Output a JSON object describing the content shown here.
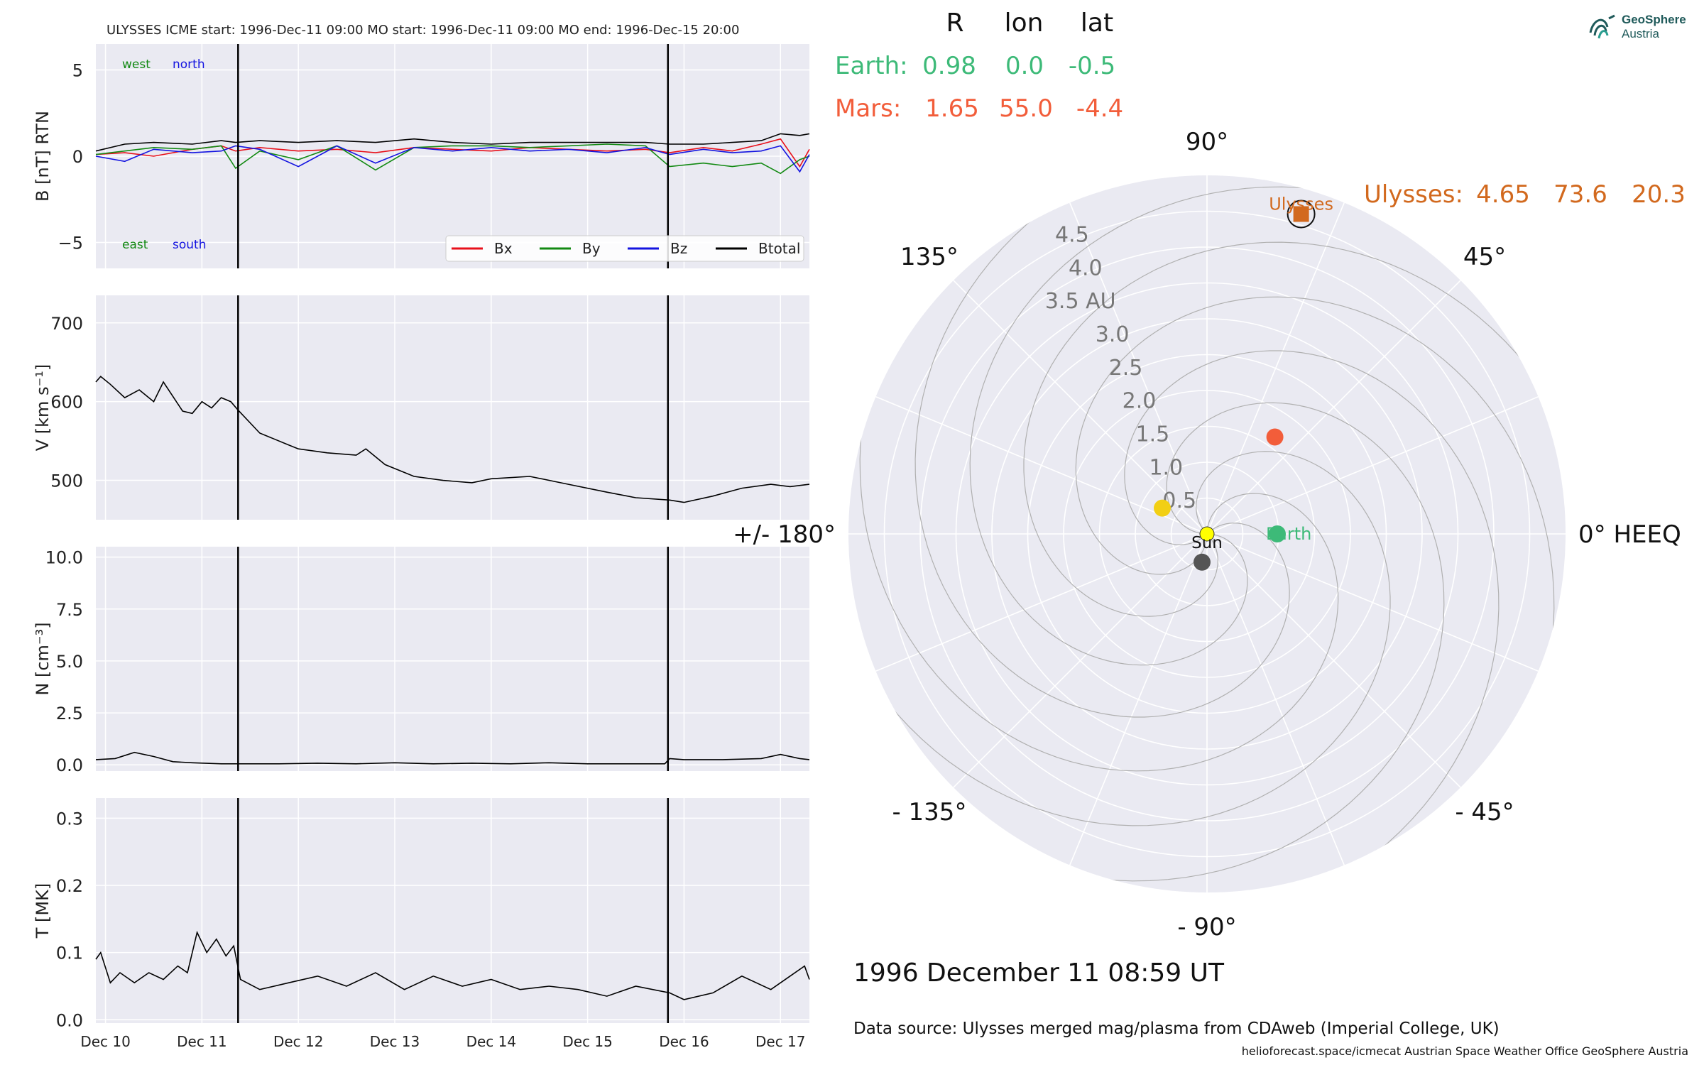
{
  "figure": {
    "top_title": "ULYSSES    ICME start: 1996-Dec-11 09:00   MO start: 1996-Dec-11 09:00   MO end: 1996-Dec-15 20:00",
    "date_text": "1996 December 11  08:59 UT",
    "source_text": "Data source: Ulysses merged mag/plasma from CDAweb (Imperial College, UK)",
    "footer_text": "helioforecast.space/icmecat   Austrian Space Weather Office   GeoSphere Austria",
    "logo": {
      "line1": "GeoSphere",
      "line2": "Austria",
      "icon": "geosphere-logo-icon"
    }
  },
  "colors": {
    "panel_bg": "#eaeaf2",
    "grid": "#ffffff",
    "bx": "#e8101a",
    "by": "#138a13",
    "bz": "#1414e0",
    "btotal": "#000000",
    "earth": "#3dba78",
    "mars": "#f25d3a",
    "ulysses": "#d2691e",
    "venus": "#f2cf14",
    "mercury": "#555555",
    "sun": "#ffff00"
  },
  "chart_data": [
    {
      "type": "line",
      "name": "magnetic-field-panel",
      "ylabel": "B [nT] RTN",
      "ylim": [
        -6.5,
        6.5
      ],
      "yticks": [
        5,
        0,
        -5
      ],
      "ytick_labels": [
        "5",
        "0",
        "−5"
      ],
      "annotations": {
        "top_left": "west",
        "top_right": "north",
        "bottom_left": "east",
        "bottom_right": "south"
      },
      "legend": [
        "Bx",
        "By",
        "Bz",
        "Btotal"
      ],
      "legend_placement": "lower-right",
      "series": [
        {
          "name": "Bx",
          "x": [
            9.9,
            10.2,
            10.5,
            10.9,
            11.2,
            11.35,
            11.6,
            12.0,
            12.4,
            12.8,
            13.2,
            13.6,
            14.0,
            14.4,
            14.8,
            15.2,
            15.6,
            15.85,
            16.2,
            16.5,
            16.8,
            17.0,
            17.2,
            17.3
          ],
          "y": [
            0.1,
            0.2,
            0.0,
            0.4,
            0.6,
            0.3,
            0.5,
            0.3,
            0.4,
            0.2,
            0.5,
            0.4,
            0.3,
            0.5,
            0.4,
            0.3,
            0.4,
            0.2,
            0.5,
            0.3,
            0.7,
            1.0,
            -0.6,
            0.4
          ]
        },
        {
          "name": "By",
          "x": [
            9.9,
            10.2,
            10.5,
            10.9,
            11.2,
            11.35,
            11.6,
            12.0,
            12.4,
            12.8,
            13.2,
            13.6,
            14.0,
            14.4,
            14.8,
            15.2,
            15.6,
            15.85,
            16.2,
            16.5,
            16.8,
            17.0,
            17.2,
            17.3
          ],
          "y": [
            0.1,
            0.3,
            0.5,
            0.4,
            0.6,
            -0.7,
            0.3,
            -0.2,
            0.6,
            -0.8,
            0.5,
            0.6,
            0.6,
            0.5,
            0.6,
            0.7,
            0.6,
            -0.6,
            -0.4,
            -0.6,
            -0.4,
            -1.0,
            -0.2,
            0.0
          ]
        },
        {
          "name": "Bz",
          "x": [
            9.9,
            10.2,
            10.5,
            10.9,
            11.2,
            11.35,
            11.6,
            12.0,
            12.4,
            12.8,
            13.2,
            13.6,
            14.0,
            14.4,
            14.8,
            15.2,
            15.6,
            15.85,
            16.2,
            16.5,
            16.8,
            17.0,
            17.2,
            17.3
          ],
          "y": [
            0.0,
            -0.3,
            0.4,
            0.2,
            0.3,
            0.6,
            0.4,
            -0.6,
            0.6,
            -0.4,
            0.5,
            0.3,
            0.5,
            0.3,
            0.4,
            0.2,
            0.5,
            0.1,
            0.4,
            0.2,
            0.3,
            0.6,
            -0.9,
            0.1
          ]
        },
        {
          "name": "Btotal",
          "x": [
            9.9,
            10.2,
            10.5,
            10.9,
            11.2,
            11.35,
            11.6,
            12.0,
            12.4,
            12.8,
            13.2,
            13.6,
            14.0,
            14.4,
            14.8,
            15.2,
            15.6,
            15.85,
            16.2,
            16.5,
            16.8,
            17.0,
            17.2,
            17.3
          ],
          "y": [
            0.3,
            0.7,
            0.8,
            0.7,
            0.9,
            0.8,
            0.9,
            0.8,
            0.9,
            0.8,
            1.0,
            0.8,
            0.7,
            0.8,
            0.8,
            0.8,
            0.8,
            0.7,
            0.7,
            0.8,
            0.9,
            1.3,
            1.2,
            1.3
          ]
        }
      ]
    },
    {
      "type": "line",
      "name": "speed-panel",
      "ylabel": "V [km s⁻¹]",
      "ylim": [
        450,
        735
      ],
      "yticks": [
        700,
        600,
        500
      ],
      "ytick_labels": [
        "700",
        "600",
        "500"
      ],
      "series": [
        {
          "name": "V",
          "x": [
            9.9,
            9.95,
            10.05,
            10.2,
            10.35,
            10.5,
            10.6,
            10.8,
            10.9,
            11.0,
            11.1,
            11.2,
            11.3,
            11.37,
            11.6,
            11.9,
            12.0,
            12.3,
            12.6,
            12.7,
            12.9,
            13.2,
            13.5,
            13.8,
            14.0,
            14.4,
            14.8,
            15.2,
            15.5,
            15.85,
            16.0,
            16.3,
            16.6,
            16.9,
            17.1,
            17.3
          ],
          "y": [
            625,
            632,
            622,
            605,
            615,
            600,
            625,
            588,
            585,
            600,
            592,
            605,
            600,
            590,
            560,
            545,
            540,
            535,
            532,
            540,
            520,
            505,
            500,
            497,
            502,
            505,
            495,
            485,
            478,
            475,
            472,
            480,
            490,
            495,
            492,
            495
          ]
        }
      ]
    },
    {
      "type": "line",
      "name": "density-panel",
      "ylabel": "N [cm⁻³]",
      "ylim": [
        -0.3,
        10.5
      ],
      "yticks": [
        10.0,
        7.5,
        5.0,
        2.5,
        0.0
      ],
      "ytick_labels": [
        "10.0",
        "7.5",
        "5.0",
        "2.5",
        "0.0"
      ],
      "series": [
        {
          "name": "N",
          "x": [
            9.9,
            10.1,
            10.3,
            10.5,
            10.7,
            10.9,
            11.2,
            11.37,
            11.8,
            12.2,
            12.6,
            13.0,
            13.4,
            13.8,
            14.2,
            14.6,
            15.0,
            15.4,
            15.8,
            15.85,
            16.0,
            16.4,
            16.8,
            17.0,
            17.2,
            17.3
          ],
          "y": [
            0.25,
            0.3,
            0.6,
            0.4,
            0.15,
            0.1,
            0.05,
            0.05,
            0.05,
            0.08,
            0.05,
            0.1,
            0.05,
            0.08,
            0.05,
            0.1,
            0.05,
            0.05,
            0.05,
            0.3,
            0.25,
            0.25,
            0.3,
            0.5,
            0.3,
            0.25
          ]
        }
      ]
    },
    {
      "type": "line",
      "name": "temperature-panel",
      "ylabel": "T [MK]",
      "ylim": [
        -0.005,
        0.33
      ],
      "yticks": [
        0.3,
        0.2,
        0.1,
        0.0
      ],
      "ytick_labels": [
        "0.3",
        "0.2",
        "0.1",
        "0.0"
      ],
      "xlim": [
        9.9,
        17.3
      ],
      "xticks": [
        10,
        11,
        12,
        13,
        14,
        15,
        16,
        17
      ],
      "xtick_labels": [
        "Dec 10",
        "Dec 11",
        "Dec 12",
        "Dec 13",
        "Dec 14",
        "Dec 15",
        "Dec 16",
        "Dec 17"
      ],
      "series": [
        {
          "name": "T",
          "x": [
            9.9,
            9.95,
            10.05,
            10.15,
            10.3,
            10.45,
            10.6,
            10.75,
            10.85,
            10.95,
            11.05,
            11.15,
            11.25,
            11.33,
            11.4,
            11.6,
            11.9,
            12.2,
            12.5,
            12.8,
            13.1,
            13.4,
            13.7,
            14.0,
            14.3,
            14.6,
            14.9,
            15.2,
            15.5,
            15.85,
            16.0,
            16.3,
            16.6,
            16.9,
            17.1,
            17.25,
            17.3
          ],
          "y": [
            0.09,
            0.1,
            0.055,
            0.07,
            0.055,
            0.07,
            0.06,
            0.08,
            0.07,
            0.13,
            0.1,
            0.12,
            0.095,
            0.11,
            0.06,
            0.045,
            0.055,
            0.065,
            0.05,
            0.07,
            0.045,
            0.065,
            0.05,
            0.06,
            0.045,
            0.05,
            0.045,
            0.035,
            0.05,
            0.04,
            0.03,
            0.04,
            0.065,
            0.045,
            0.065,
            0.08,
            0.06
          ]
        }
      ]
    },
    {
      "type": "scatter",
      "name": "polar-position-plot",
      "projection": "polar",
      "rlim": [
        0,
        5.0
      ],
      "r_ticks": [
        0.5,
        1.0,
        1.5,
        2.0,
        2.5,
        3.0,
        3.5,
        4.0,
        4.5
      ],
      "r_tick_labels": [
        "0.5",
        "1.0",
        "1.5",
        "2.0",
        "2.5",
        "3.0",
        "3.5 AU",
        "4.0",
        "4.5"
      ],
      "theta_labels": [
        "0° HEEQ",
        "45°",
        "90°",
        "135°",
        "+/- 180°",
        "- 135°",
        "- 90°",
        "- 45°"
      ],
      "theta_degrees": [
        0,
        45,
        90,
        135,
        180,
        -135,
        -90,
        -45
      ],
      "objects": [
        {
          "name": "Sun",
          "label": "Sun",
          "r": 0.0,
          "lon": 0.0,
          "color": "sun"
        },
        {
          "name": "Earth",
          "label": "Earth",
          "r": 0.98,
          "lon": 0.0,
          "color": "earth"
        },
        {
          "name": "Mars",
          "label": "",
          "r": 1.65,
          "lon": 55.0,
          "color": "mars"
        },
        {
          "name": "Ulysses",
          "label": "Ulysses",
          "r": 4.65,
          "lon": 73.6,
          "color": "ulysses"
        },
        {
          "name": "Venus",
          "label": "",
          "r": 0.72,
          "lon": 150.0,
          "color": "venus"
        },
        {
          "name": "Mercury",
          "label": "",
          "r": 0.4,
          "lon": -100.0,
          "color": "mercury"
        }
      ],
      "table": {
        "headers": [
          "R",
          "lon",
          "lat"
        ],
        "rows": [
          {
            "name": "Earth:",
            "r": "0.98",
            "lon": "0.0",
            "lat": "-0.5"
          },
          {
            "name": "Mars:",
            "r": "1.65",
            "lon": "55.0",
            "lat": "-4.4"
          },
          {
            "name": "Ulysses:",
            "r": "4.65",
            "lon": "73.6",
            "lat": "20.3"
          }
        ]
      },
      "events": [
        11.375,
        15.833
      ]
    }
  ]
}
